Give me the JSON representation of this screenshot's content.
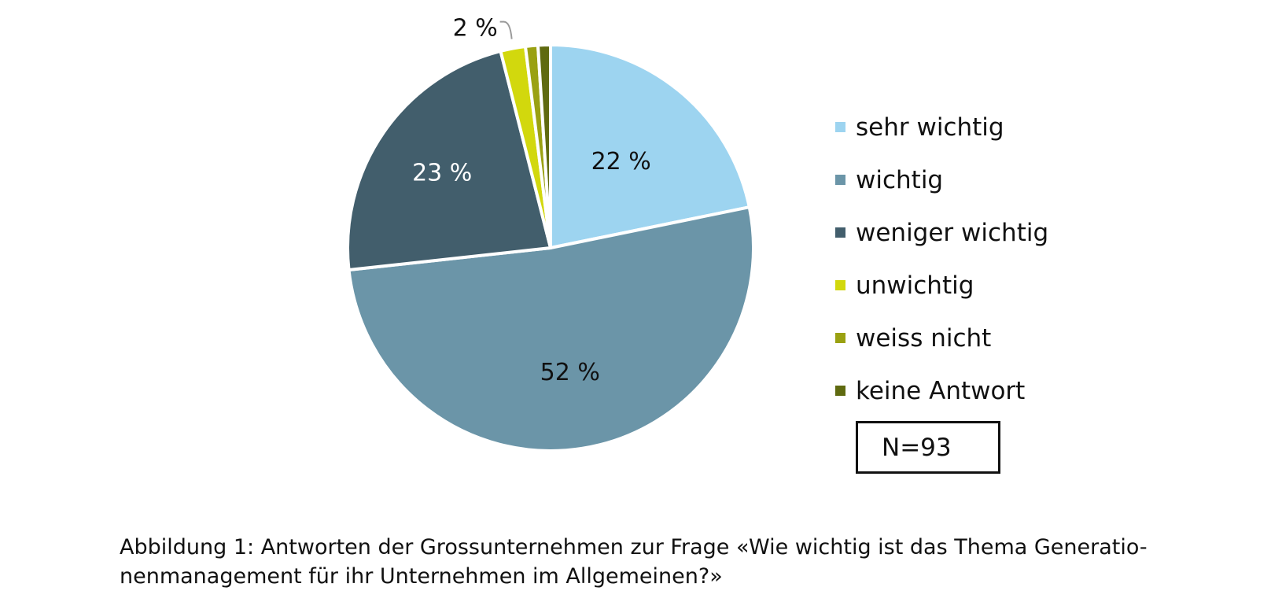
{
  "chart_data": {
    "type": "pie",
    "categories": [
      "sehr wichtig",
      "wichtig",
      "weniger wichtig",
      "unwichtig",
      "weiss nicht",
      "keine Antwort"
    ],
    "values": [
      22,
      52,
      23,
      2,
      1,
      1
    ],
    "data_labels": [
      "22 %",
      "52 %",
      "23 %",
      "2 %",
      "",
      ""
    ],
    "colors": [
      "#9dd4f0",
      "#6b95a8",
      "#425e6c",
      "#d2d80d",
      "#9aa112",
      "#5f6a10"
    ],
    "legend_position": "right",
    "start_angle_deg": 0,
    "direction": "clockwise"
  },
  "legend": {
    "items": [
      {
        "label": "sehr wichtig",
        "color": "#9dd4f0"
      },
      {
        "label": "wichtig",
        "color": "#6b95a8"
      },
      {
        "label": "weniger wichtig",
        "color": "#425e6c"
      },
      {
        "label": "unwichtig",
        "color": "#d2d80d"
      },
      {
        "label": "weiss nicht",
        "color": "#9aa112"
      },
      {
        "label": "keine Antwort",
        "color": "#5f6a10"
      }
    ]
  },
  "sample_box": {
    "text": "N=93"
  },
  "caption": {
    "line1": "Abbildung 1: Antworten der Grossunternehmen zur Frage «Wie wichtig ist das Thema Generatio-",
    "line2": "nenmanagement für ihr Unternehmen im Allgemeinen?»"
  }
}
